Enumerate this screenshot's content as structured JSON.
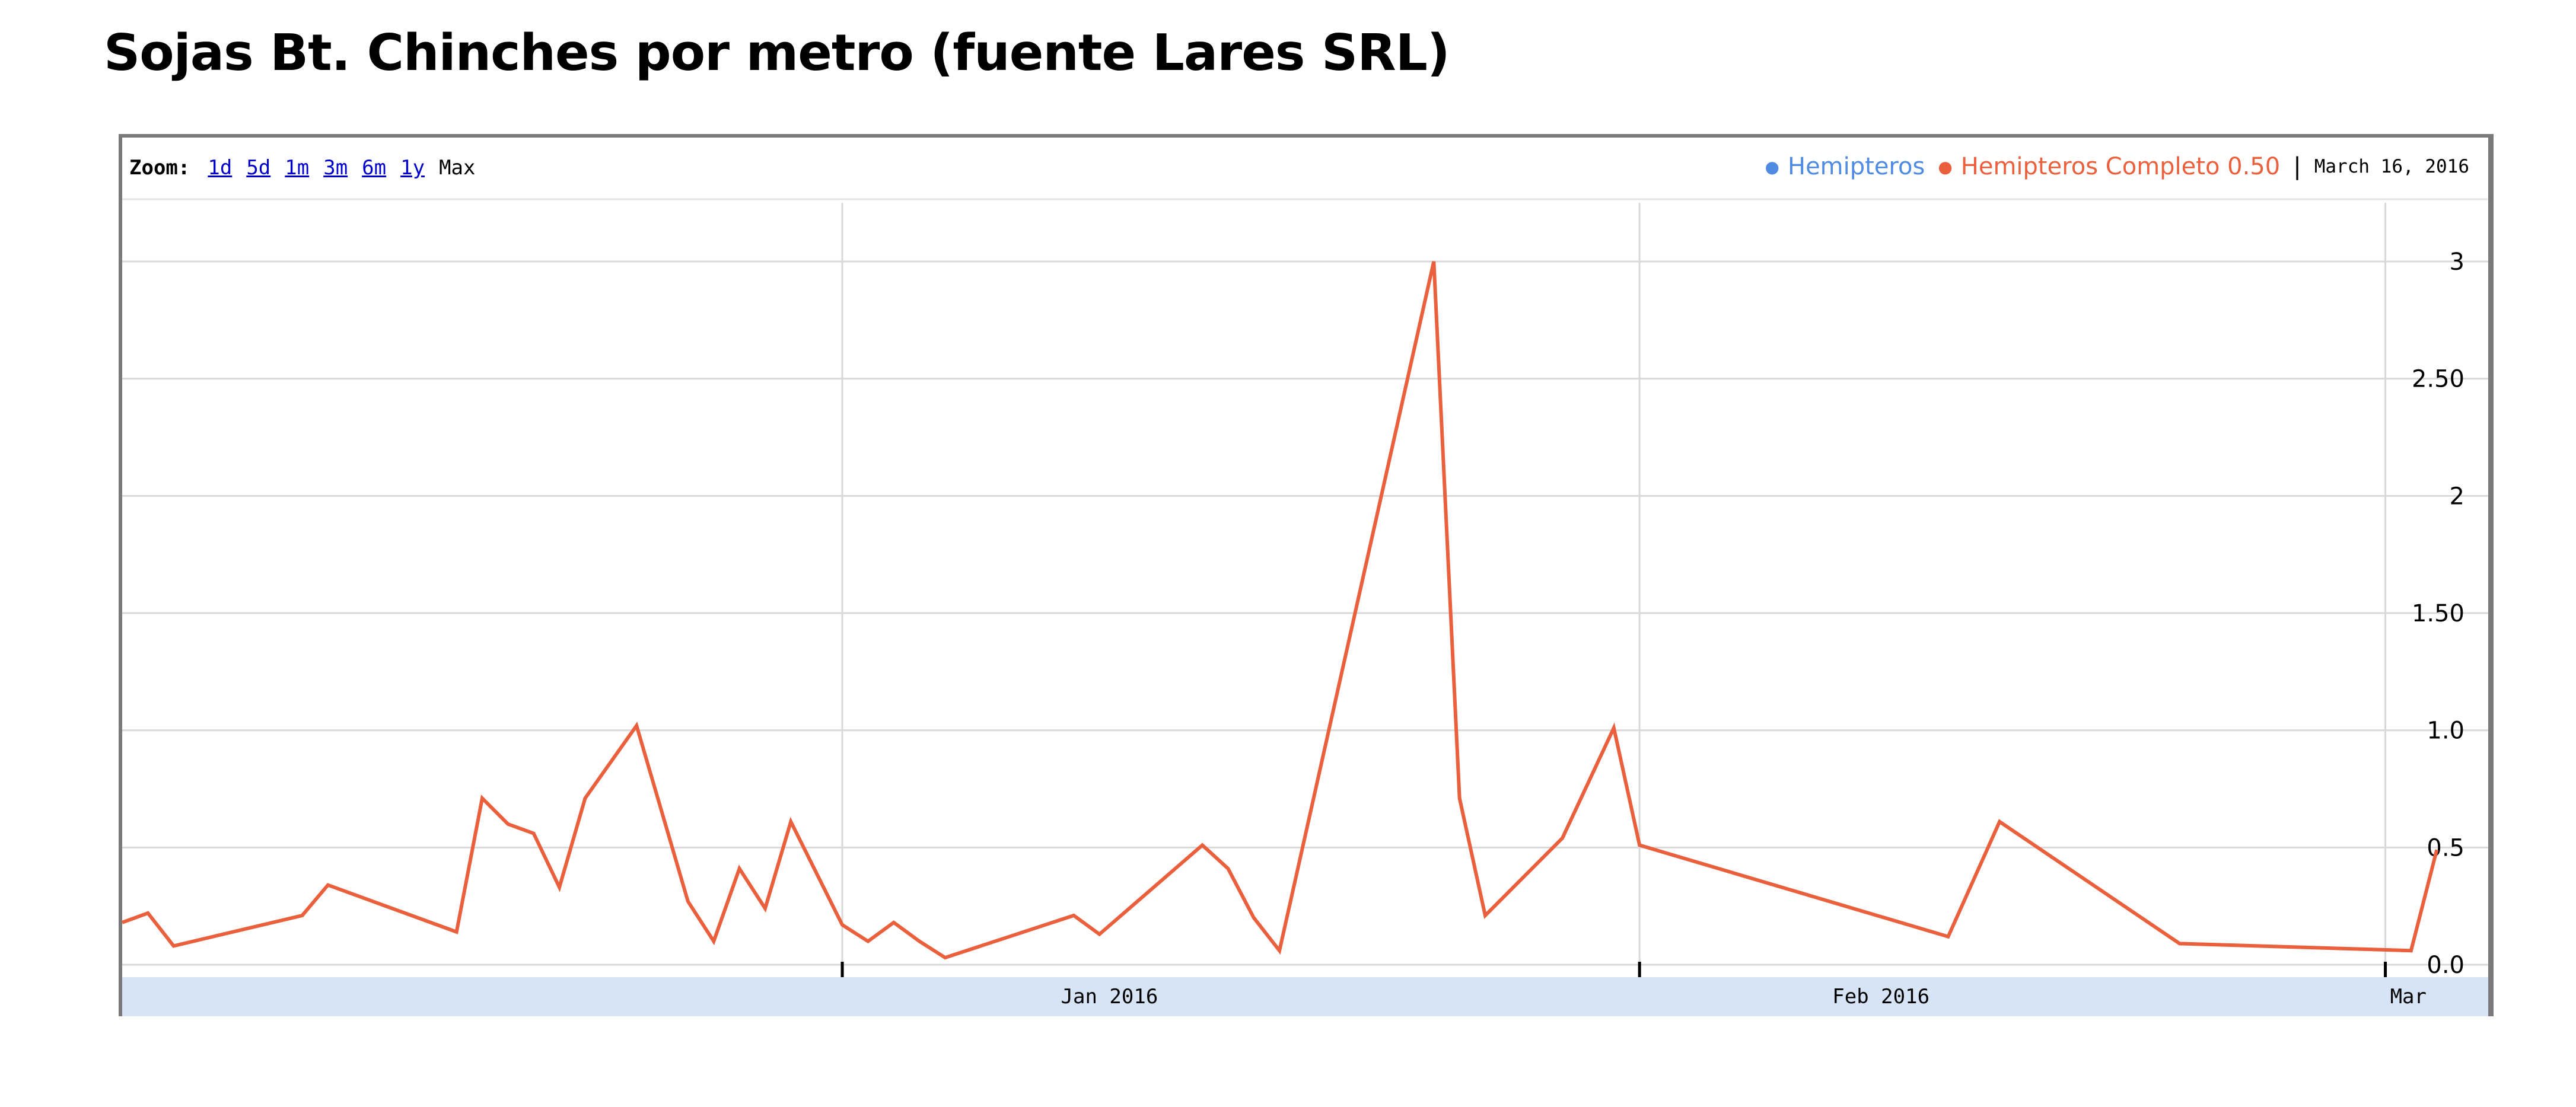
{
  "title": "Sojas Bt. Chinches por metro (fuente Lares SRL)",
  "zoom": {
    "label": "Zoom:",
    "options": [
      "1d",
      "5d",
      "1m",
      "3m",
      "6m",
      "1y"
    ],
    "active": "Max"
  },
  "legend": {
    "series_1": "Hemipteros",
    "series_2": "Hemipteros Completo 0.50",
    "separator": "|",
    "date": "March 16, 2016"
  },
  "colors": {
    "series_1": "#4f8be0",
    "series_2": "#ea5f3c",
    "grid": "#d9d9d9",
    "axis_band": "#d6e4f6",
    "frame": "#7a7a7a"
  },
  "chart_data": {
    "type": "line",
    "title": "",
    "xlabel": "",
    "ylabel": "",
    "x_domain": [
      "2015-12-04",
      "2016-03-05"
    ],
    "ylim": [
      0,
      3.35
    ],
    "y_ticks": [
      0,
      0.5,
      1.0,
      1.5,
      2,
      2.5,
      3
    ],
    "y_tick_labels": [
      "0.0",
      "0.5",
      "1.0",
      "1.50",
      "2",
      "2.50",
      "3"
    ],
    "x_ticks": [
      {
        "date": "2016-01-01",
        "label": "Jan 2016"
      },
      {
        "date": "2016-02-01",
        "label": "Feb 2016"
      },
      {
        "date": "2016-03-01",
        "label": "Mar"
      }
    ],
    "grid": true,
    "legend_position": "top-right",
    "series": [
      {
        "name": "Hemipteros Completo 0.50",
        "points": [
          [
            "2015-12-04",
            0.18
          ],
          [
            "2015-12-05",
            0.22
          ],
          [
            "2015-12-06",
            0.08
          ],
          [
            "2015-12-11",
            0.21
          ],
          [
            "2015-12-12",
            0.34
          ],
          [
            "2015-12-17",
            0.14
          ],
          [
            "2015-12-18",
            0.71
          ],
          [
            "2015-12-19",
            0.6
          ],
          [
            "2015-12-20",
            0.56
          ],
          [
            "2015-12-21",
            0.33
          ],
          [
            "2015-12-22",
            0.71
          ],
          [
            "2015-12-24",
            1.02
          ],
          [
            "2015-12-26",
            0.27
          ],
          [
            "2015-12-27",
            0.1
          ],
          [
            "2015-12-28",
            0.41
          ],
          [
            "2015-12-29",
            0.24
          ],
          [
            "2015-12-30",
            0.61
          ],
          [
            "2016-01-01",
            0.17
          ],
          [
            "2016-01-02",
            0.1
          ],
          [
            "2016-01-03",
            0.18
          ],
          [
            "2016-01-04",
            0.1
          ],
          [
            "2016-01-05",
            0.03
          ],
          [
            "2016-01-10",
            0.21
          ],
          [
            "2016-01-11",
            0.13
          ],
          [
            "2016-01-15",
            0.51
          ],
          [
            "2016-01-16",
            0.41
          ],
          [
            "2016-01-17",
            0.2
          ],
          [
            "2016-01-18",
            0.06
          ],
          [
            "2016-01-24",
            3.0
          ],
          [
            "2016-01-25",
            0.71
          ],
          [
            "2016-01-26",
            0.21
          ],
          [
            "2016-01-29",
            0.54
          ],
          [
            "2016-01-31",
            1.01
          ],
          [
            "2016-02-01",
            0.51
          ],
          [
            "2016-02-13",
            0.12
          ],
          [
            "2016-02-15",
            0.61
          ],
          [
            "2016-02-22",
            0.09
          ],
          [
            "2016-03-02",
            0.06
          ],
          [
            "2016-03-03",
            0.49
          ]
        ]
      }
    ]
  }
}
